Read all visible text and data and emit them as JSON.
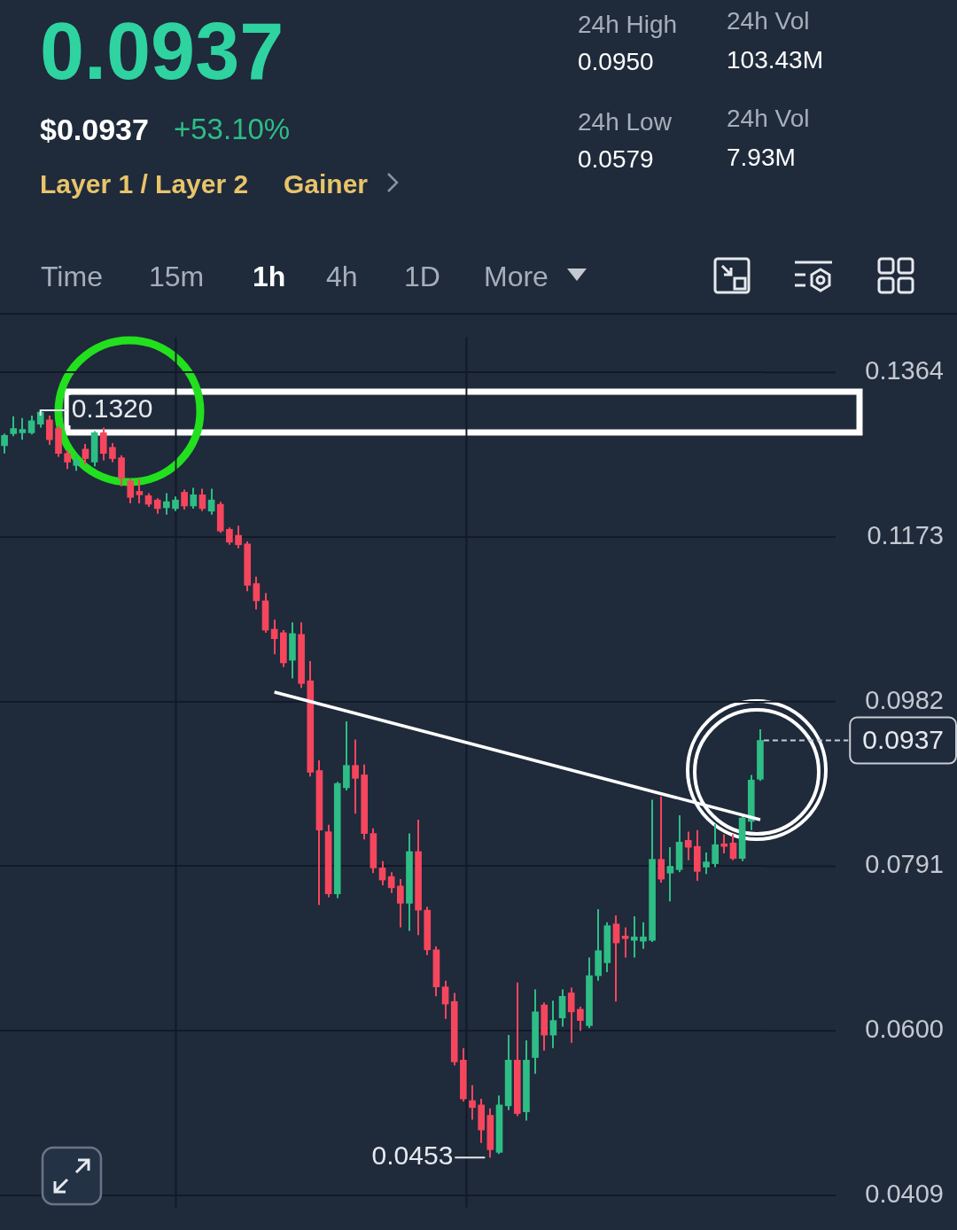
{
  "chart_data": {
    "type": "candlestick",
    "title": "0.0937",
    "categories": [
      null,
      null,
      null,
      null,
      null,
      null,
      null,
      null,
      null,
      null,
      null,
      null,
      null,
      null,
      null,
      null,
      null,
      null,
      null,
      null,
      null,
      null,
      null,
      null,
      null,
      null,
      null,
      null,
      null,
      null,
      null,
      null,
      null,
      null,
      null,
      null,
      null,
      null,
      null,
      null,
      null,
      null,
      null,
      null,
      null,
      null,
      null,
      null,
      null,
      null,
      null,
      null,
      null,
      null,
      null,
      null,
      null,
      null,
      null,
      null,
      null,
      null,
      null,
      null,
      null,
      null,
      null,
      null,
      null,
      null,
      null,
      null,
      null,
      null,
      null,
      null,
      null,
      null,
      null,
      null,
      null,
      null,
      null,
      null,
      null
    ],
    "ohlc": [
      [
        0.1279,
        0.1293,
        0.127,
        0.1291
      ],
      [
        0.1293,
        0.1313,
        0.129,
        0.1299
      ],
      [
        0.1294,
        0.1311,
        0.1286,
        0.1298
      ],
      [
        0.1294,
        0.1314,
        0.1292,
        0.1308
      ],
      [
        0.1304,
        0.132,
        0.13,
        0.1318
      ],
      [
        0.1309,
        0.1314,
        0.128,
        0.1286
      ],
      [
        0.1299,
        0.1302,
        0.1266,
        0.127
      ],
      [
        0.127,
        0.1274,
        0.1252,
        0.126
      ],
      [
        0.1256,
        0.1268,
        0.125,
        0.1262
      ],
      [
        0.1275,
        0.1281,
        0.1257,
        0.1264
      ],
      [
        0.126,
        0.1296,
        0.1255,
        0.1294
      ],
      [
        0.1294,
        0.13,
        0.1262,
        0.127
      ],
      [
        0.1277,
        0.1282,
        0.126,
        0.1264
      ],
      [
        0.1265,
        0.1268,
        0.1232,
        0.1241
      ],
      [
        0.1238,
        0.1241,
        0.1212,
        0.1219
      ],
      [
        0.1226,
        0.124,
        0.1212,
        0.1222
      ],
      [
        0.1221,
        0.1224,
        0.1208,
        0.1211
      ],
      [
        0.1216,
        0.1218,
        0.12,
        0.1206
      ],
      [
        0.1207,
        0.1224,
        0.1199,
        0.1214
      ],
      [
        0.1206,
        0.122,
        0.1203,
        0.1216
      ],
      [
        0.1225,
        0.1228,
        0.1205,
        0.1209
      ],
      [
        0.1209,
        0.123,
        0.1206,
        0.1222
      ],
      [
        0.1222,
        0.1229,
        0.1203,
        0.1206
      ],
      [
        0.1203,
        0.1229,
        0.1199,
        0.1216
      ],
      [
        0.1211,
        0.1214,
        0.1178,
        0.118
      ],
      [
        0.1182,
        0.1184,
        0.1164,
        0.1167
      ],
      [
        0.1175,
        0.1186,
        0.116,
        0.1164
      ],
      [
        0.1165,
        0.1168,
        0.111,
        0.1117
      ],
      [
        0.1119,
        0.1127,
        0.1089,
        0.1099
      ],
      [
        0.1099,
        0.1108,
        0.1062,
        0.1065
      ],
      [
        0.1066,
        0.1077,
        0.1037,
        0.1055
      ],
      [
        0.1062,
        0.1065,
        0.1022,
        0.1027
      ],
      [
        0.103,
        0.1074,
        0.1009,
        0.1061
      ],
      [
        0.106,
        0.1074,
        0.0998,
        0.1003
      ],
      [
        0.1006,
        0.1029,
        0.0895,
        0.09
      ],
      [
        0.0902,
        0.0914,
        0.0746,
        0.0833
      ],
      [
        0.0831,
        0.0839,
        0.0755,
        0.0759
      ],
      [
        0.0759,
        0.0889,
        0.0754,
        0.0887
      ],
      [
        0.0882,
        0.0959,
        0.0879,
        0.0908
      ],
      [
        0.0908,
        0.0938,
        0.0852,
        0.0893
      ],
      [
        0.0897,
        0.0909,
        0.0822,
        0.0829
      ],
      [
        0.0829,
        0.0835,
        0.0783,
        0.0789
      ],
      [
        0.0789,
        0.0797,
        0.0769,
        0.0775
      ],
      [
        0.0779,
        0.0784,
        0.076,
        0.0766
      ],
      [
        0.0768,
        0.0776,
        0.072,
        0.0748
      ],
      [
        0.0748,
        0.0829,
        0.0716,
        0.0808
      ],
      [
        0.0808,
        0.0845,
        0.0711,
        0.074
      ],
      [
        0.074,
        0.0744,
        0.0688,
        0.0694
      ],
      [
        0.0694,
        0.0698,
        0.064,
        0.0651
      ],
      [
        0.0651,
        0.0658,
        0.0614,
        0.0631
      ],
      [
        0.0634,
        0.0644,
        0.056,
        0.0564
      ],
      [
        0.0566,
        0.058,
        0.0518,
        0.0521
      ],
      [
        0.0519,
        0.0537,
        0.0497,
        0.0511
      ],
      [
        0.0514,
        0.0521,
        0.047,
        0.0485
      ],
      [
        0.0502,
        0.051,
        0.0453,
        0.0462
      ],
      [
        0.0459,
        0.0525,
        0.0457,
        0.0514
      ],
      [
        0.0513,
        0.0595,
        0.0508,
        0.0566
      ],
      [
        0.0566,
        0.0656,
        0.0501,
        0.0504
      ],
      [
        0.0506,
        0.0589,
        0.0496,
        0.0566
      ],
      [
        0.0569,
        0.0648,
        0.055,
        0.0622
      ],
      [
        0.063,
        0.0633,
        0.0577,
        0.0595
      ],
      [
        0.0595,
        0.0635,
        0.058,
        0.0612
      ],
      [
        0.0615,
        0.0648,
        0.0605,
        0.064
      ],
      [
        0.0644,
        0.065,
        0.0586,
        0.0622
      ],
      [
        0.0625,
        0.0628,
        0.06,
        0.0612
      ],
      [
        0.0606,
        0.0685,
        0.0603,
        0.0664
      ],
      [
        0.0664,
        0.0741,
        0.0658,
        0.0693
      ],
      [
        0.0679,
        0.0726,
        0.0668,
        0.0722
      ],
      [
        0.0724,
        0.0734,
        0.0634,
        0.0702
      ],
      [
        0.071,
        0.072,
        0.0685,
        0.0707
      ],
      [
        0.0705,
        0.0733,
        0.0685,
        0.0709
      ],
      [
        0.0704,
        0.0726,
        0.0695,
        0.0709
      ],
      [
        0.0705,
        0.0868,
        0.0703,
        0.0799
      ],
      [
        0.0799,
        0.0872,
        0.0772,
        0.0776
      ],
      [
        0.0783,
        0.0813,
        0.075,
        0.0791
      ],
      [
        0.0787,
        0.085,
        0.0784,
        0.0819
      ],
      [
        0.0821,
        0.0831,
        0.0798,
        0.0813
      ],
      [
        0.0814,
        0.0833,
        0.0774,
        0.0785
      ],
      [
        0.079,
        0.0807,
        0.0782,
        0.0796
      ],
      [
        0.0794,
        0.084,
        0.079,
        0.0816
      ],
      [
        0.0817,
        0.0828,
        0.0806,
        0.0814
      ],
      [
        0.0818,
        0.0828,
        0.0798,
        0.08
      ],
      [
        0.08,
        0.085,
        0.0797,
        0.0847
      ],
      [
        0.0843,
        0.0897,
        0.0833,
        0.0891
      ],
      [
        0.0892,
        0.095,
        0.089,
        0.0937
      ]
    ],
    "colors": [
      "#2ebd85",
      "#2ebd85",
      "#2ebd85",
      "#2ebd85",
      "#2ebd85",
      "#f6465d",
      "#f6465d",
      "#f6465d",
      "#2ebd85",
      "#f6465d",
      "#2ebd85",
      "#f6465d",
      "#f6465d",
      "#f6465d",
      "#f6465d",
      "#f6465d",
      "#f6465d",
      "#f6465d",
      "#2ebd85",
      "#2ebd85",
      "#f6465d",
      "#2ebd85",
      "#f6465d",
      "#2ebd85",
      "#f6465d",
      "#f6465d",
      "#f6465d",
      "#f6465d",
      "#f6465d",
      "#f6465d",
      "#f6465d",
      "#f6465d",
      "#2ebd85",
      "#f6465d",
      "#f6465d",
      "#f6465d",
      "#f6465d",
      "#2ebd85",
      "#2ebd85",
      "#f6465d",
      "#f6465d",
      "#f6465d",
      "#f6465d",
      "#f6465d",
      "#f6465d",
      "#2ebd85",
      "#f6465d",
      "#f6465d",
      "#f6465d",
      "#f6465d",
      "#f6465d",
      "#f6465d",
      "#f6465d",
      "#f6465d",
      "#f6465d",
      "#2ebd85",
      "#2ebd85",
      "#f6465d",
      "#2ebd85",
      "#2ebd85",
      "#f6465d",
      "#2ebd85",
      "#2ebd85",
      "#f6465d",
      "#f6465d",
      "#2ebd85",
      "#2ebd85",
      "#2ebd85",
      "#f6465d",
      "#f6465d",
      "#2ebd85",
      "#2ebd85",
      "#2ebd85",
      "#f6465d",
      "#2ebd85",
      "#2ebd85",
      "#f6465d",
      "#f6465d",
      "#2ebd85",
      "#2ebd85",
      "#f6465d",
      "#f6465d",
      "#2ebd85",
      "#2ebd85",
      "#2ebd85"
    ],
    "ylim": [
      0.0395,
      0.1405
    ],
    "yticks": [
      0.1364,
      0.1173,
      0.0982,
      0.0791,
      {
        "value": 0.06,
        "label": "0.0600"
      },
      0.0409
    ],
    "series": [
      {
        "type": "line",
        "color": "#ffffff",
        "values": [
          null,
          null,
          null,
          null,
          null,
          null,
          null,
          null,
          null,
          null,
          null,
          null,
          null,
          null,
          null,
          null,
          null,
          null,
          null,
          null,
          null,
          null,
          null,
          null,
          null,
          null,
          null,
          null,
          null,
          null,
          0.0993,
          null,
          null,
          null,
          null,
          null,
          null,
          null,
          null,
          null,
          null,
          null,
          null,
          null,
          null,
          null,
          null,
          null,
          null,
          null,
          null,
          null,
          null,
          null,
          null,
          null,
          null,
          null,
          null,
          null,
          null,
          null,
          null,
          null,
          null,
          null,
          null,
          null,
          null,
          null,
          null,
          null,
          null,
          null,
          null,
          null,
          null,
          null,
          null,
          null,
          null,
          null,
          null,
          null,
          0.0845
        ]
      }
    ],
    "grid": "y",
    "ref_lines": [
      {
        "axis": "y",
        "value": 0.0937,
        "label": "0.0937",
        "line_style": "dashed"
      }
    ],
    "annotations": [
      "$0.0937",
      "+53.10%",
      "Layer 1 / Layer 2",
      "Gainer",
      "24h High",
      "0.0950",
      "24h Vol",
      "103.43M",
      "24h Low",
      "0.0579",
      "24h Vol",
      "7.93M",
      "Time",
      "15m",
      "1h",
      "4h",
      "1D",
      "More",
      "0.1320",
      "0.0453"
    ]
  }
}
